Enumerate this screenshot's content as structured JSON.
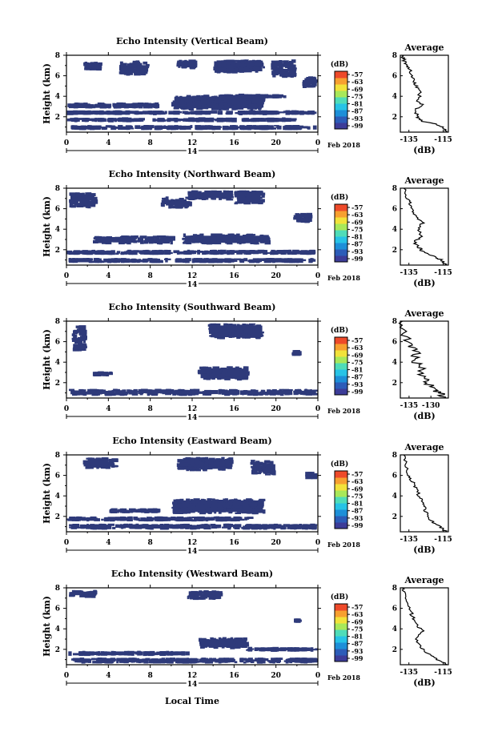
{
  "figure": {
    "xlabel_bottom": "Local Time",
    "date_label": "Feb 2018",
    "day_label": "14",
    "colorbar_unit": "(dB)",
    "avg_title": "Average",
    "avg_unit": "(dB)",
    "colors": {
      "background": "#ffffff",
      "echo": "#2e3a7a",
      "colorbar": [
        "#3c3c98",
        "#2c5cb8",
        "#1d8fd8",
        "#27c3e6",
        "#4fdcb8",
        "#a8e85a",
        "#f2e23a",
        "#f7a030",
        "#ee4a2a"
      ]
    }
  },
  "chart_data": [
    {
      "type": "heatmap",
      "title": "Echo Intensity (Vertical Beam)",
      "ylabel": "Height (km)",
      "x_ticks": [
        "0",
        "4",
        "8",
        "12",
        "16",
        "20",
        "0"
      ],
      "y_ticks": [
        "2",
        "4",
        "6",
        "8"
      ],
      "xlim": [
        0,
        24
      ],
      "ylim": [
        0.5,
        8
      ],
      "colorbar_ticks": [
        "-57",
        "-63",
        "-69",
        "-75",
        "-81",
        "-87",
        "-93",
        "-99"
      ],
      "echo_regions": [
        {
          "x": [
            0.2,
            24
          ],
          "y": [
            0.7,
            1.2
          ]
        },
        {
          "x": [
            0,
            22
          ],
          "y": [
            1.5,
            1.9
          ]
        },
        {
          "x": [
            0,
            24
          ],
          "y": [
            2.2,
            2.6
          ]
        },
        {
          "x": [
            0.1,
            9
          ],
          "y": [
            2.8,
            3.4
          ]
        },
        {
          "x": [
            10,
            19
          ],
          "y": [
            2.6,
            4.2
          ]
        },
        {
          "x": [
            16,
            21
          ],
          "y": [
            3.8,
            4.2
          ]
        },
        {
          "x": [
            1.5,
            3.5
          ],
          "y": [
            6.5,
            7.4
          ]
        },
        {
          "x": [
            5,
            8
          ],
          "y": [
            6.0,
            7.5
          ]
        },
        {
          "x": [
            10.5,
            12.5
          ],
          "y": [
            6.6,
            7.6
          ]
        },
        {
          "x": [
            14,
            19
          ],
          "y": [
            6.2,
            7.6
          ]
        },
        {
          "x": [
            19.5,
            22
          ],
          "y": [
            5.8,
            7.6
          ]
        },
        {
          "x": [
            22.5,
            24
          ],
          "y": [
            4.8,
            6.0
          ]
        }
      ],
      "average": {
        "title": "Average",
        "xlabel": "(dB)",
        "x_ticks": [
          "-135",
          "-115"
        ],
        "y_ticks": [
          "2",
          "4",
          "6",
          "8"
        ],
        "xlim": [
          -140,
          -112
        ],
        "ylim": [
          0.5,
          8
        ],
        "x": [
          -113,
          -115,
          -120,
          -128,
          -130,
          -131,
          -127,
          -130,
          -128,
          -131,
          -132,
          -134,
          -135,
          -137,
          -138,
          -139
        ],
        "y": [
          0.5,
          1.0,
          1.3,
          1.6,
          2.0,
          2.7,
          3.2,
          3.6,
          4.4,
          5.0,
          5.6,
          6.2,
          6.8,
          7.2,
          7.6,
          8.0
        ]
      }
    },
    {
      "type": "heatmap",
      "title": "Echo Intensity (Northward Beam)",
      "ylabel": "Height (km)",
      "x_ticks": [
        "0",
        "4",
        "8",
        "12",
        "16",
        "20",
        "0"
      ],
      "y_ticks": [
        "2",
        "4",
        "6",
        "8"
      ],
      "xlim": [
        0,
        24
      ],
      "ylim": [
        0.5,
        8
      ],
      "colorbar_ticks": [
        "-57",
        "-63",
        "-69",
        "-75",
        "-81",
        "-87",
        "-93",
        "-99"
      ],
      "echo_regions": [
        {
          "x": [
            0.1,
            24
          ],
          "y": [
            0.7,
            1.2
          ]
        },
        {
          "x": [
            0,
            24
          ],
          "y": [
            1.5,
            2.0
          ]
        },
        {
          "x": [
            2.5,
            10.5
          ],
          "y": [
            2.5,
            3.4
          ]
        },
        {
          "x": [
            11,
            19.5
          ],
          "y": [
            2.5,
            3.6
          ]
        },
        {
          "x": [
            0.2,
            3
          ],
          "y": [
            6.0,
            7.6
          ]
        },
        {
          "x": [
            9,
            12
          ],
          "y": [
            6.0,
            7.2
          ]
        },
        {
          "x": [
            11.5,
            16
          ],
          "y": [
            6.8,
            7.8
          ]
        },
        {
          "x": [
            16,
            19
          ],
          "y": [
            6.4,
            7.8
          ]
        },
        {
          "x": [
            21.5,
            23.5
          ],
          "y": [
            4.6,
            5.6
          ]
        }
      ],
      "average": {
        "title": "Average",
        "xlabel": "(dB)",
        "x_ticks": [
          "-135",
          "-115"
        ],
        "y_ticks": [
          "2",
          "4",
          "6",
          "8"
        ],
        "xlim": [
          -140,
          -112
        ],
        "ylim": [
          0.5,
          8
        ],
        "x": [
          -113,
          -116,
          -120,
          -127,
          -129,
          -132,
          -127,
          -130,
          -127,
          -130,
          -133,
          -134,
          -136,
          -138
        ],
        "y": [
          0.5,
          1.0,
          1.3,
          1.8,
          2.2,
          2.8,
          3.3,
          3.9,
          4.6,
          5.2,
          5.8,
          6.4,
          7.0,
          8.0
        ]
      }
    },
    {
      "type": "heatmap",
      "title": "Echo Intensity (Southward Beam)",
      "ylabel": "Height (km)",
      "x_ticks": [
        "0",
        "4",
        "8",
        "12",
        "16",
        "20",
        "0"
      ],
      "y_ticks": [
        "2",
        "4",
        "6",
        "8"
      ],
      "xlim": [
        0,
        24
      ],
      "ylim": [
        0.5,
        8
      ],
      "colorbar_ticks": [
        "-57",
        "-63",
        "-69",
        "-75",
        "-81",
        "-87",
        "-93",
        "-99"
      ],
      "echo_regions": [
        {
          "x": [
            0.2,
            24
          ],
          "y": [
            0.7,
            1.4
          ]
        },
        {
          "x": [
            2.5,
            4.5
          ],
          "y": [
            2.6,
            3.1
          ]
        },
        {
          "x": [
            12.5,
            17.5
          ],
          "y": [
            2.2,
            3.6
          ]
        },
        {
          "x": [
            0.5,
            2
          ],
          "y": [
            5.0,
            7.6
          ]
        },
        {
          "x": [
            13.5,
            19
          ],
          "y": [
            6.2,
            7.8
          ]
        },
        {
          "x": [
            21.5,
            22.5
          ],
          "y": [
            4.6,
            5.2
          ]
        }
      ],
      "average": {
        "title": "Average",
        "xlabel": "(dB)",
        "x_ticks": [
          "-135",
          "-130"
        ],
        "y_ticks": [
          "2",
          "4",
          "6",
          "8"
        ],
        "xlim": [
          -137,
          -126
        ],
        "ylim": [
          0.5,
          8
        ],
        "x": [
          -126.5,
          -128,
          -130,
          -131,
          -133,
          -132,
          -134,
          -133,
          -135,
          -136,
          -136.5
        ],
        "y": [
          0.5,
          1.0,
          1.5,
          2.2,
          2.8,
          3.5,
          4.2,
          5.0,
          5.8,
          6.8,
          8.0
        ]
      }
    },
    {
      "type": "heatmap",
      "title": "Echo Intensity (Eastward Beam)",
      "ylabel": "Height (km)",
      "x_ticks": [
        "0",
        "4",
        "8",
        "12",
        "16",
        "20",
        "0"
      ],
      "y_ticks": [
        "2",
        "4",
        "6",
        "8"
      ],
      "xlim": [
        0,
        24
      ],
      "ylim": [
        0.5,
        8
      ],
      "colorbar_ticks": [
        "-57",
        "-63",
        "-69",
        "-75",
        "-81",
        "-87",
        "-93",
        "-99"
      ],
      "echo_regions": [
        {
          "x": [
            0.2,
            24
          ],
          "y": [
            0.7,
            1.3
          ]
        },
        {
          "x": [
            0,
            18
          ],
          "y": [
            1.5,
            2.0
          ]
        },
        {
          "x": [
            4,
            9
          ],
          "y": [
            2.3,
            2.8
          ]
        },
        {
          "x": [
            10,
            19
          ],
          "y": [
            2.2,
            3.8
          ]
        },
        {
          "x": [
            17.5,
            19
          ],
          "y": [
            2.8,
            3.4
          ]
        },
        {
          "x": [
            1.5,
            5
          ],
          "y": [
            6.6,
            7.8
          ]
        },
        {
          "x": [
            10.5,
            16
          ],
          "y": [
            6.4,
            7.8
          ]
        },
        {
          "x": [
            17.5,
            20
          ],
          "y": [
            6.0,
            7.6
          ]
        },
        {
          "x": [
            22.5,
            24
          ],
          "y": [
            5.6,
            6.4
          ]
        }
      ],
      "average": {
        "title": "Average",
        "xlabel": "(dB)",
        "x_ticks": [
          "-135",
          "-115"
        ],
        "y_ticks": [
          "2",
          "4",
          "6",
          "8"
        ],
        "xlim": [
          -140,
          -112
        ],
        "ylim": [
          0.5,
          8
        ],
        "x": [
          -113,
          -117,
          -122,
          -124,
          -126,
          -127,
          -129,
          -131,
          -133,
          -135,
          -137,
          -138
        ],
        "y": [
          0.5,
          1.0,
          1.6,
          2.2,
          2.8,
          3.4,
          4.0,
          4.8,
          5.4,
          6.0,
          7.0,
          8.0
        ]
      }
    },
    {
      "type": "heatmap",
      "title": "Echo Intensity (Westward Beam)",
      "ylabel": "Height (km)",
      "x_ticks": [
        "0",
        "4",
        "8",
        "12",
        "16",
        "20",
        "0"
      ],
      "y_ticks": [
        "2",
        "4",
        "6",
        "8"
      ],
      "xlim": [
        0,
        24
      ],
      "ylim": [
        0.5,
        8
      ],
      "colorbar_ticks": [
        "-57",
        "-63",
        "-69",
        "-75",
        "-81",
        "-87",
        "-93",
        "-99"
      ],
      "echo_regions": [
        {
          "x": [
            0.2,
            24
          ],
          "y": [
            0.6,
            1.2
          ]
        },
        {
          "x": [
            0,
            12
          ],
          "y": [
            1.4,
            1.8
          ]
        },
        {
          "x": [
            12.5,
            17.5
          ],
          "y": [
            2.0,
            3.2
          ]
        },
        {
          "x": [
            17,
            24
          ],
          "y": [
            1.8,
            2.2
          ]
        },
        {
          "x": [
            0.2,
            3
          ],
          "y": [
            7.0,
            7.8
          ]
        },
        {
          "x": [
            11.5,
            15
          ],
          "y": [
            6.8,
            7.8
          ]
        },
        {
          "x": [
            21.5,
            22.5
          ],
          "y": [
            4.6,
            5.0
          ]
        }
      ],
      "average": {
        "title": "Average",
        "xlabel": "(dB)",
        "x_ticks": [
          "-135",
          "-115"
        ],
        "y_ticks": [
          "2",
          "4",
          "6",
          "8"
        ],
        "xlim": [
          -140,
          -112
        ],
        "ylim": [
          0.5,
          8
        ],
        "x": [
          -113,
          -118,
          -124,
          -128,
          -131,
          -127,
          -131,
          -133,
          -134,
          -136,
          -138,
          -139
        ],
        "y": [
          0.5,
          1.0,
          1.6,
          2.2,
          3.0,
          3.8,
          4.5,
          5.2,
          5.8,
          6.6,
          7.4,
          8.0
        ]
      }
    }
  ]
}
